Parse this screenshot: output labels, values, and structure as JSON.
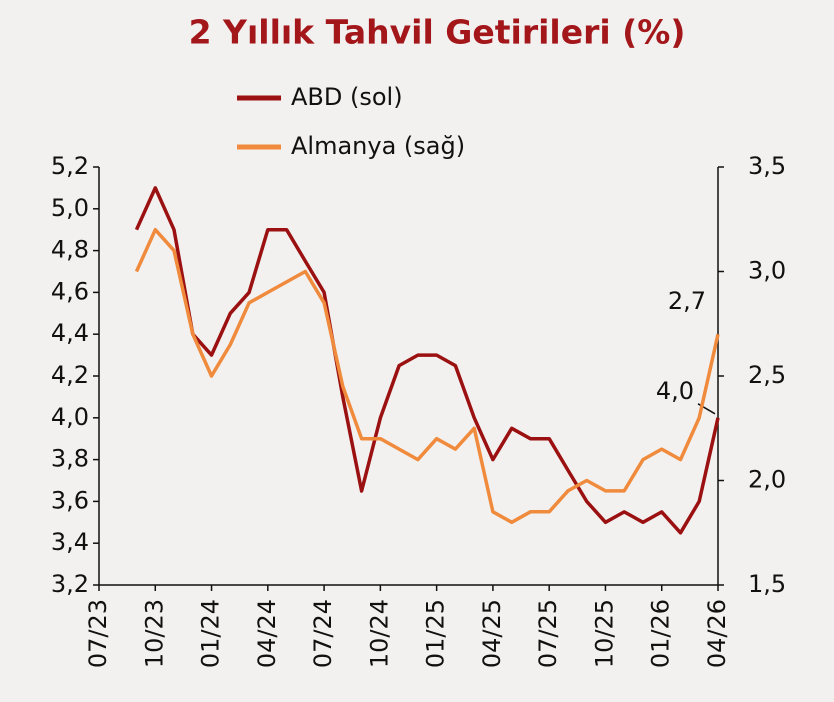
{
  "chart_data": {
    "type": "line",
    "title": "2 Yıllık Tahvil Getirileri (%)",
    "x": [
      "2023-09",
      "2023-10",
      "2023-11",
      "2023-12",
      "2024-01",
      "2024-02",
      "2024-03",
      "2024-04",
      "2024-05",
      "2024-06",
      "2024-07",
      "2024-08",
      "2024-09",
      "2024-10",
      "2024-11",
      "2024-12",
      "2025-01",
      "2025-02",
      "2025-03",
      "2025-04",
      "2025-05",
      "2025-06",
      "2025-07",
      "2025-08",
      "2025-09",
      "2025-10",
      "2025-11",
      "2025-12",
      "2026-01",
      "2026-02",
      "2026-03",
      "2026-04"
    ],
    "series": [
      {
        "name": "ABD (sol)",
        "color": "#9b1010",
        "axis": "y",
        "values": [
          4.9,
          5.1,
          4.9,
          4.4,
          4.3,
          4.5,
          4.6,
          4.9,
          4.9,
          4.75,
          4.6,
          4.1,
          3.65,
          4.0,
          4.25,
          4.3,
          4.3,
          4.25,
          4.0,
          3.8,
          3.95,
          3.9,
          3.9,
          3.75,
          3.6,
          3.5,
          3.55,
          3.5,
          3.55,
          3.45,
          3.6,
          4.0
        ],
        "value_labels": [
          null,
          null,
          null,
          null,
          null,
          null,
          null,
          null,
          null,
          null,
          null,
          null,
          null,
          null,
          null,
          null,
          null,
          null,
          null,
          null,
          null,
          null,
          null,
          null,
          null,
          null,
          null,
          null,
          null,
          null,
          null,
          "4,0"
        ]
      },
      {
        "name": "Almanya (sağ)",
        "color": "#f08a3c",
        "axis": "y2",
        "values": [
          3.0,
          3.2,
          3.1,
          2.7,
          2.5,
          2.65,
          2.85,
          2.9,
          2.95,
          3.0,
          2.85,
          2.45,
          2.2,
          2.2,
          2.15,
          2.1,
          2.2,
          2.15,
          2.25,
          1.85,
          1.8,
          1.85,
          1.85,
          1.95,
          2.0,
          1.95,
          1.95,
          2.1,
          2.15,
          2.1,
          2.3,
          2.7
        ],
        "value_labels": [
          null,
          null,
          null,
          null,
          null,
          null,
          null,
          null,
          null,
          null,
          null,
          null,
          null,
          null,
          null,
          null,
          null,
          null,
          null,
          null,
          null,
          null,
          null,
          null,
          null,
          null,
          null,
          null,
          null,
          null,
          null,
          "2,7"
        ]
      }
    ],
    "xlim": [
      "2023-07",
      "2026-04"
    ],
    "xticks": [
      {
        "value": "2023-07",
        "label": "07/23"
      },
      {
        "value": "2023-10",
        "label": "10/23"
      },
      {
        "value": "2024-01",
        "label": "01/24"
      },
      {
        "value": "2024-04",
        "label": "04/24"
      },
      {
        "value": "2024-07",
        "label": "07/24"
      },
      {
        "value": "2024-10",
        "label": "10/24"
      },
      {
        "value": "2025-01",
        "label": "01/25"
      },
      {
        "value": "2025-04",
        "label": "04/25"
      },
      {
        "value": "2025-07",
        "label": "07/25"
      },
      {
        "value": "2025-10",
        "label": "10/25"
      },
      {
        "value": "2026-01",
        "label": "01/26"
      },
      {
        "value": "2026-04",
        "label": "04/26"
      }
    ],
    "ylim": [
      3.2,
      5.2
    ],
    "yticks": [
      {
        "value": 3.2,
        "label": "3,2"
      },
      {
        "value": 3.4,
        "label": "3,4"
      },
      {
        "value": 3.6,
        "label": "3,6"
      },
      {
        "value": 3.8,
        "label": "3,8"
      },
      {
        "value": 4.0,
        "label": "4,0"
      },
      {
        "value": 4.2,
        "label": "4,2"
      },
      {
        "value": 4.4,
        "label": "4,4"
      },
      {
        "value": 4.6,
        "label": "4,6"
      },
      {
        "value": 4.8,
        "label": "4,8"
      },
      {
        "value": 5.0,
        "label": "5,0"
      },
      {
        "value": 5.2,
        "label": "5,2"
      }
    ],
    "y2lim": [
      1.5,
      3.5
    ],
    "y2ticks": [
      {
        "value": 1.5,
        "label": "1,5"
      },
      {
        "value": 2.0,
        "label": "2,0"
      },
      {
        "value": 2.5,
        "label": "2,5"
      },
      {
        "value": 3.0,
        "label": "3,0"
      },
      {
        "value": 3.5,
        "label": "3,5"
      }
    ],
    "grid": false
  }
}
